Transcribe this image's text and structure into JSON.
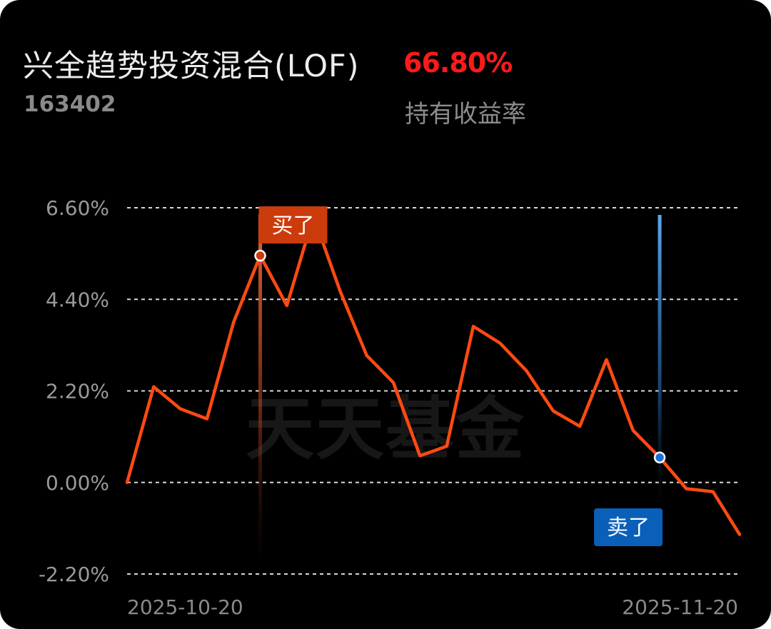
{
  "header": {
    "fund_name": "兴全趋势投资混合(LOF)",
    "fund_code": "163402",
    "return_value": "66.80%",
    "return_label": "持有收益率"
  },
  "watermark": "天天基金",
  "colors": {
    "background": "#000000",
    "line": "#ff4a12",
    "positive": "#ff1a1a",
    "buy_tag": "#cc3b0c",
    "sell_tag": "#0a5fb8",
    "grid": "#d8d8d8"
  },
  "chart_data": {
    "type": "line",
    "title": "",
    "xlabel": "",
    "ylabel": "",
    "y_unit": "%",
    "ylim": [
      -2.2,
      6.6
    ],
    "yticks": [
      "6.60%",
      "4.40%",
      "2.20%",
      "0.00%",
      "-2.20%"
    ],
    "ytick_values": [
      6.6,
      4.4,
      2.2,
      0.0,
      -2.2
    ],
    "grid": true,
    "x_start_label": "2025-10-20",
    "x_end_label": "2025-11-20",
    "series": [
      {
        "values": [
          0.0,
          2.3,
          1.77,
          1.53,
          3.85,
          5.45,
          4.25,
          6.4,
          4.6,
          3.05,
          2.4,
          0.64,
          0.87,
          3.75,
          3.35,
          2.68,
          1.72,
          1.35,
          2.95,
          1.25,
          0.6,
          -0.15,
          -0.22,
          -1.25
        ]
      }
    ],
    "markers": [
      {
        "type": "buy",
        "label": "买了",
        "index": 5
      },
      {
        "type": "sell",
        "label": "卖了",
        "index": 20
      }
    ]
  }
}
